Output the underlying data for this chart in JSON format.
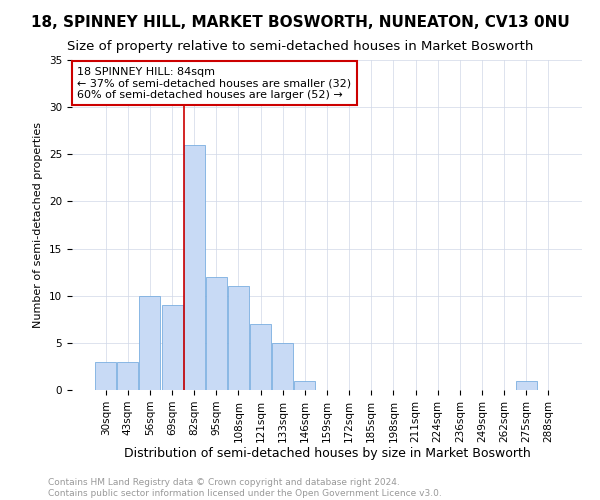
{
  "title": "18, SPINNEY HILL, MARKET BOSWORTH, NUNEATON, CV13 0NU",
  "subtitle": "Size of property relative to semi-detached houses in Market Bosworth",
  "xlabel": "Distribution of semi-detached houses by size in Market Bosworth",
  "ylabel": "Number of semi-detached properties",
  "categories": [
    "30sqm",
    "43sqm",
    "56sqm",
    "69sqm",
    "82sqm",
    "95sqm",
    "108sqm",
    "121sqm",
    "133sqm",
    "146sqm",
    "159sqm",
    "172sqm",
    "185sqm",
    "198sqm",
    "211sqm",
    "224sqm",
    "236sqm",
    "249sqm",
    "262sqm",
    "275sqm",
    "288sqm"
  ],
  "values": [
    3,
    3,
    10,
    9,
    26,
    12,
    11,
    7,
    5,
    1,
    0,
    0,
    0,
    0,
    0,
    0,
    0,
    0,
    0,
    1,
    0
  ],
  "bar_color": "#c8daf5",
  "bar_edgecolor": "#7aaee0",
  "vline_x_index": 4,
  "vline_color": "#cc0000",
  "annotation_title": "18 SPINNEY HILL: 84sqm",
  "annotation_line1": "← 37% of semi-detached houses are smaller (32)",
  "annotation_line2": "60% of semi-detached houses are larger (52) →",
  "annotation_box_color": "#ffffff",
  "annotation_box_edgecolor": "#cc0000",
  "ylim": [
    0,
    35
  ],
  "yticks": [
    0,
    5,
    10,
    15,
    20,
    25,
    30,
    35
  ],
  "footer_line1": "Contains HM Land Registry data © Crown copyright and database right 2024.",
  "footer_line2": "Contains public sector information licensed under the Open Government Licence v3.0.",
  "background_color": "#ffffff",
  "plot_background_color": "#ffffff",
  "title_fontsize": 11,
  "subtitle_fontsize": 9.5,
  "xlabel_fontsize": 9,
  "ylabel_fontsize": 8,
  "tick_fontsize": 7.5,
  "footer_fontsize": 6.5,
  "annotation_fontsize": 8
}
